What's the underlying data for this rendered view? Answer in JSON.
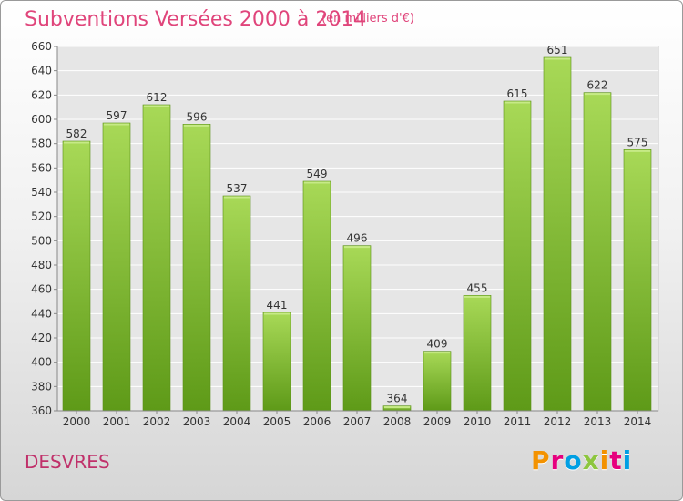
{
  "title": "Subventions Versées 2000 à 2014",
  "subtitle": "(en milliers d'€)",
  "city": "DESVRES",
  "logo": {
    "text": "Proxiti",
    "colors": [
      "#f39200",
      "#e6007e",
      "#009fe3",
      "#8dc63f",
      "#f39200",
      "#e6007e",
      "#009fe3"
    ]
  },
  "chart_data": {
    "type": "bar",
    "categories": [
      "2000",
      "2001",
      "2002",
      "2003",
      "2004",
      "2005",
      "2006",
      "2007",
      "2008",
      "2009",
      "2010",
      "2011",
      "2012",
      "2013",
      "2014"
    ],
    "values": [
      582,
      597,
      612,
      596,
      537,
      441,
      549,
      496,
      364,
      409,
      455,
      615,
      651,
      622,
      575
    ],
    "ylim": [
      360,
      660
    ],
    "yticks": [
      360,
      380,
      400,
      420,
      440,
      460,
      480,
      500,
      520,
      540,
      560,
      580,
      600,
      620,
      640,
      660
    ],
    "grid": true,
    "bar_color": "#7fbf2a",
    "bar_color_light": "#a8d957",
    "bar_color_dark": "#5e9a18"
  }
}
